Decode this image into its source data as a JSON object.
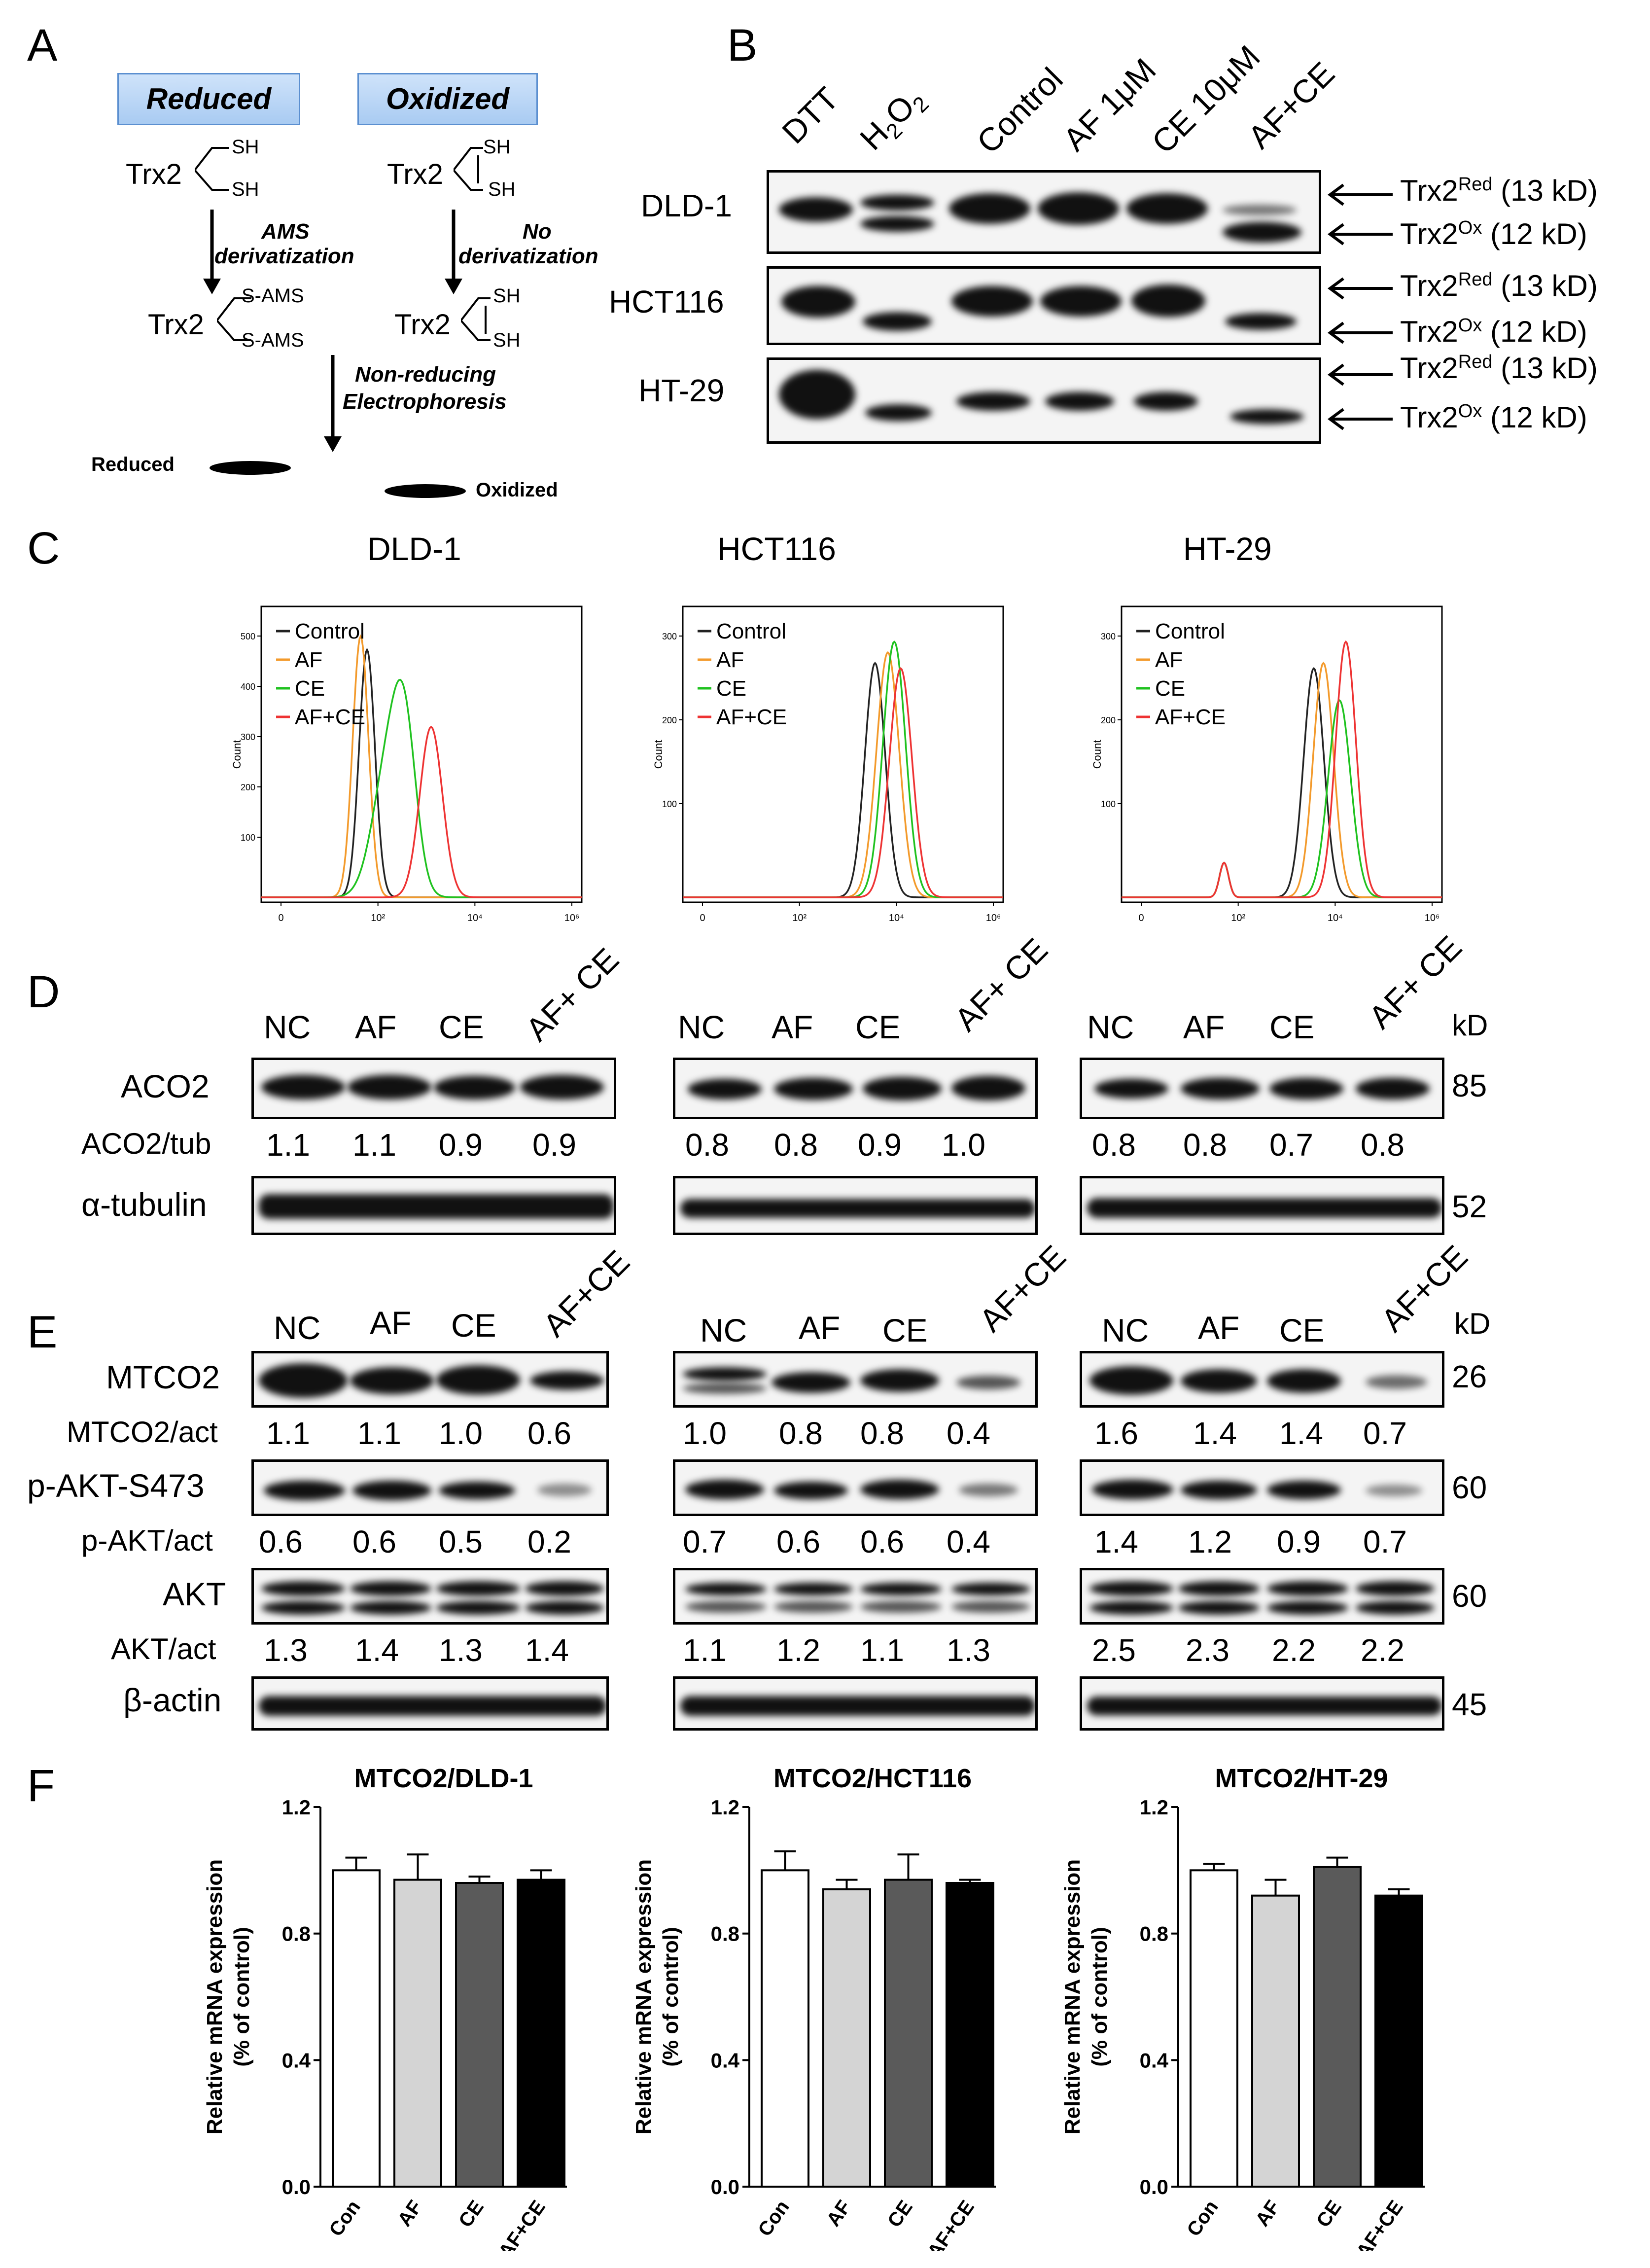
{
  "panel_letters": [
    "A",
    "B",
    "C",
    "D",
    "E",
    "F"
  ],
  "panelA": {
    "reduced_box": "Reduced",
    "oxidized_box": "Oxidized",
    "protein": "Trx2",
    "sh": "SH",
    "sams": "S-AMS",
    "ams_step": [
      "AMS",
      "derivatization"
    ],
    "no_step": [
      "No",
      "derivatization"
    ],
    "nonred_step": [
      "Non-reducing",
      "Electrophoresis"
    ],
    "reduced_band": "Reduced",
    "oxidized_band": "Oxidized"
  },
  "panelB": {
    "lanes": [
      "DTT",
      "H2O2",
      "Control",
      "AF 1μM",
      "CE 10μM",
      "AF+CE"
    ],
    "h2o2_parts": [
      "H",
      "2",
      "O",
      "2"
    ],
    "cells": [
      "DLD-1",
      "HCT116",
      "HT-29"
    ],
    "red_label": [
      "Trx2",
      "Red",
      " (13 kD)"
    ],
    "ox_label": [
      "Trx2",
      "Ox",
      " (12 kD)"
    ]
  },
  "panelC": {
    "titles": [
      "DLD-1",
      "HCT116",
      "HT-29"
    ],
    "legend": [
      "Control",
      "AF",
      "CE",
      "AF+CE"
    ],
    "colors": [
      "#222222",
      "#f39a2b",
      "#1fc21f",
      "#ee3333"
    ],
    "ylabel": "Count",
    "xticks": [
      "0",
      "10²",
      "10⁴",
      "10⁶"
    ],
    "yticks": [
      [
        "100",
        "200",
        "300",
        "400",
        "500"
      ],
      [
        "100",
        "200",
        "300"
      ],
      [
        "100",
        "200",
        "300"
      ]
    ]
  },
  "panelD": {
    "lanes": [
      "NC",
      "AF",
      "CE",
      "AF+ CE"
    ],
    "kd": "kD",
    "rows": [
      "ACO2",
      "ACO2/tub",
      "α-tubulin"
    ],
    "mw": [
      "85",
      "52"
    ],
    "ratios": [
      [
        "1.1",
        "1.1",
        "0.9",
        "0.9"
      ],
      [
        "0.8",
        "0.8",
        "0.9",
        "1.0"
      ],
      [
        "0.8",
        "0.8",
        "0.7",
        "0.8"
      ]
    ]
  },
  "panelE": {
    "lanes": [
      "NC",
      "AF",
      "CE",
      "AF+CE"
    ],
    "kd": "kD",
    "rows": [
      "MTCO2",
      "MTCO2/act",
      "p-AKT-S473",
      "p-AKT/act",
      "AKT",
      "AKT/act",
      "β-actin"
    ],
    "mw": [
      "26",
      "60",
      "60",
      "45"
    ],
    "mtco2_ratios": [
      [
        "1.1",
        "1.1",
        "1.0",
        "0.6"
      ],
      [
        "1.0",
        "0.8",
        "0.8",
        "0.4"
      ],
      [
        "1.6",
        "1.4",
        "1.4",
        "0.7"
      ]
    ],
    "pakt_ratios": [
      [
        "0.6",
        "0.6",
        "0.5",
        "0.2"
      ],
      [
        "0.7",
        "0.6",
        "0.6",
        "0.4"
      ],
      [
        "1.4",
        "1.2",
        "0.9",
        "0.7"
      ]
    ],
    "akt_ratios": [
      [
        "1.3",
        "1.4",
        "1.3",
        "1.4"
      ],
      [
        "1.1",
        "1.2",
        "1.1",
        "1.3"
      ],
      [
        "2.5",
        "2.3",
        "2.2",
        "2.2"
      ]
    ]
  },
  "chart_data": [
    {
      "type": "bar",
      "title": "MTCO2/DLD-1",
      "ylabel": "Relative mRNA expression (% of control)",
      "categories": [
        "Con",
        "AF",
        "CE",
        "AF+CE"
      ],
      "values": [
        1.0,
        0.97,
        0.96,
        0.97
      ],
      "errors": [
        0.04,
        0.08,
        0.02,
        0.03
      ],
      "colors": [
        "#ffffff",
        "#d4d4d4",
        "#5a5a5a",
        "#000000"
      ],
      "ylim": [
        0,
        1.2
      ],
      "yticks": [
        "0.0",
        "0.4",
        "0.8",
        "1.2"
      ]
    },
    {
      "type": "bar",
      "title": "MTCO2/HCT116",
      "ylabel": "Relative mRNA expression (% of control)",
      "categories": [
        "Con",
        "AF",
        "CE",
        "AF+CE"
      ],
      "values": [
        1.0,
        0.94,
        0.97,
        0.96
      ],
      "errors": [
        0.06,
        0.03,
        0.08,
        0.01
      ],
      "colors": [
        "#ffffff",
        "#d4d4d4",
        "#5a5a5a",
        "#000000"
      ],
      "ylim": [
        0,
        1.2
      ],
      "yticks": [
        "0.0",
        "0.4",
        "0.8",
        "1.2"
      ]
    },
    {
      "type": "bar",
      "title": "MTCO2/HT-29",
      "ylabel": "Relative mRNA expression (% of control)",
      "categories": [
        "Con",
        "AF",
        "CE",
        "AF+CE"
      ],
      "values": [
        1.0,
        0.92,
        1.01,
        0.92
      ],
      "errors": [
        0.02,
        0.05,
        0.03,
        0.02
      ],
      "colors": [
        "#ffffff",
        "#d4d4d4",
        "#5a5a5a",
        "#000000"
      ],
      "ylim": [
        0,
        1.2
      ],
      "yticks": [
        "0.0",
        "0.4",
        "0.8",
        "1.2"
      ]
    }
  ]
}
